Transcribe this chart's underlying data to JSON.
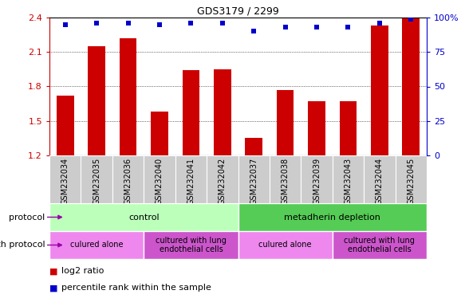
{
  "title": "GDS3179 / 2299",
  "samples": [
    "GSM232034",
    "GSM232035",
    "GSM232036",
    "GSM232040",
    "GSM232041",
    "GSM232042",
    "GSM232037",
    "GSM232038",
    "GSM232039",
    "GSM232043",
    "GSM232044",
    "GSM232045"
  ],
  "log2_ratio": [
    1.72,
    2.15,
    2.22,
    1.58,
    1.94,
    1.95,
    1.35,
    1.77,
    1.67,
    1.67,
    2.33,
    2.4
  ],
  "percentile": [
    95,
    96,
    96,
    95,
    96,
    96,
    90,
    93,
    93,
    93,
    96,
    99
  ],
  "bar_color": "#cc0000",
  "dot_color": "#0000cc",
  "ylim_left": [
    1.2,
    2.4
  ],
  "ylim_right": [
    0,
    100
  ],
  "yticks_left": [
    1.2,
    1.5,
    1.8,
    2.1,
    2.4
  ],
  "yticks_right": [
    0,
    25,
    50,
    75,
    100
  ],
  "ytick_labels_right": [
    "0",
    "25",
    "50",
    "75",
    "100%"
  ],
  "protocol_groups": [
    {
      "label": "control",
      "start": 0,
      "end": 6,
      "color": "#bbffbb"
    },
    {
      "label": "metadherin depletion",
      "start": 6,
      "end": 12,
      "color": "#55cc55"
    }
  ],
  "growth_groups": [
    {
      "label": "culured alone",
      "start": 0,
      "end": 3,
      "color": "#ee88ee"
    },
    {
      "label": "cultured with lung\nendothelial cells",
      "start": 3,
      "end": 6,
      "color": "#cc55cc"
    },
    {
      "label": "culured alone",
      "start": 6,
      "end": 9,
      "color": "#ee88ee"
    },
    {
      "label": "cultured with lung\nendothelial cells",
      "start": 9,
      "end": 12,
      "color": "#cc55cc"
    }
  ],
  "legend_items": [
    {
      "label": "log2 ratio",
      "color": "#cc0000"
    },
    {
      "label": "percentile rank within the sample",
      "color": "#0000cc"
    }
  ],
  "bar_color_hex": "#cc0000",
  "dot_color_hex": "#0000cc",
  "left_tick_color": "#cc0000",
  "right_tick_color": "#0000cc",
  "sample_bg_color": "#cccccc",
  "sample_label_fontsize": 7,
  "bar_width": 0.55
}
